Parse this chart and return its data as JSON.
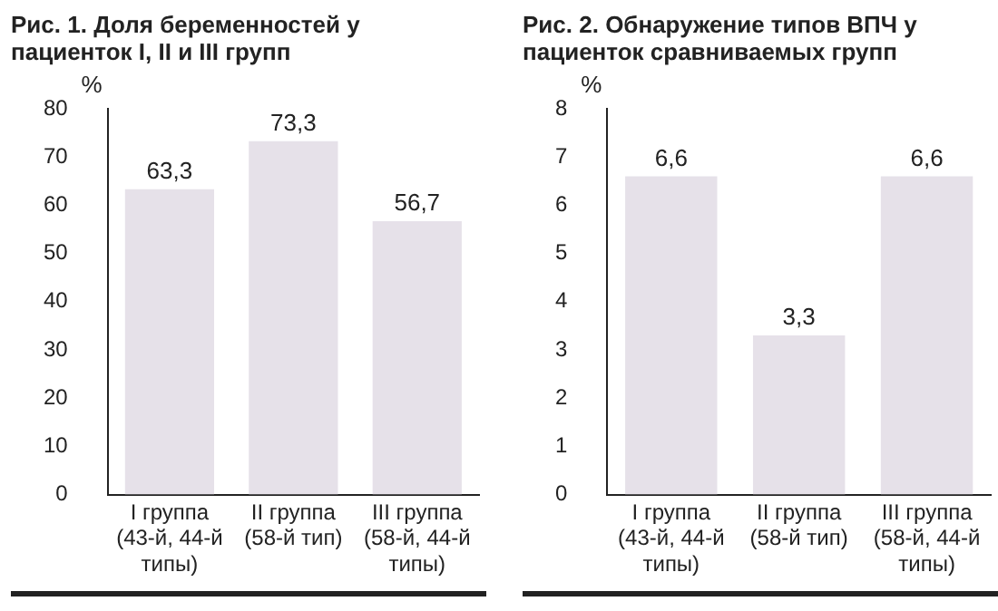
{
  "chart_data": [
    {
      "type": "bar",
      "title": "Рис. 1. Доля беременностей у пациенток I, II и III групп",
      "ylabel": "%",
      "categories": [
        "I группа (43-й, 44-й типы)",
        "II группа (58-й тип)",
        "III группа (58-й, 44-й типы)"
      ],
      "values": [
        63.3,
        73.3,
        56.7
      ],
      "value_labels": [
        "63,3",
        "73,3",
        "56,7"
      ],
      "color": "#e6e1e9",
      "ylim": [
        0,
        80
      ],
      "yticks": [
        0,
        10,
        20,
        30,
        40,
        50,
        60,
        70,
        80
      ]
    },
    {
      "type": "bar",
      "title": "Рис. 2. Обнаружение типов ВПЧ у пациенток сравниваемых групп",
      "ylabel": "%",
      "categories": [
        "I группа (43-й, 44-й типы)",
        "II группа (58-й тип)",
        "III группа (58-й, 44-й типы)"
      ],
      "values": [
        6.6,
        3.3,
        6.6
      ],
      "value_labels": [
        "6,6",
        "3,3",
        "6,6"
      ],
      "color": "#e6e1e9",
      "ylim": [
        0,
        8
      ],
      "yticks": [
        0,
        1,
        2,
        3,
        4,
        5,
        6,
        7,
        8
      ]
    }
  ]
}
